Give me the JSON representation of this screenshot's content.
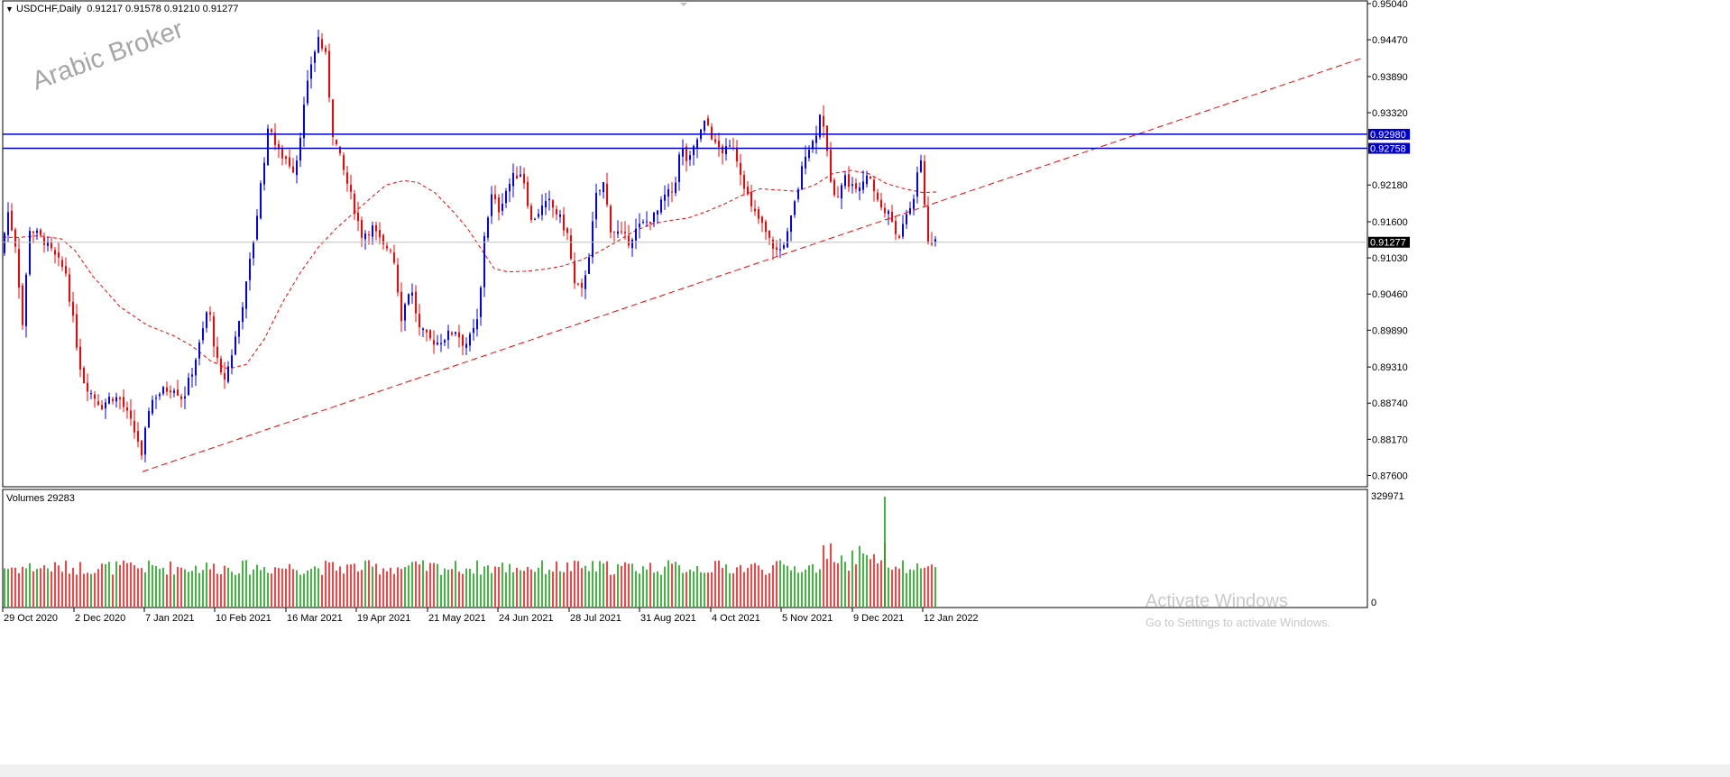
{
  "header": {
    "arrow_glyph": "▼",
    "symbol_info": "USDCHF,Daily  0.91217 0.91578 0.91210 0.91277"
  },
  "watermark": "Arabic Broker",
  "volumes": {
    "label": "Volumes 29283",
    "scale_max": "329971",
    "scale_min": "0"
  },
  "activation": {
    "title": "Activate Windows",
    "subtitle": "Go to Settings to activate Windows."
  },
  "colors": {
    "up_candle": "#0000ff",
    "down_candle": "#ff0000",
    "volume_up": "#00a000",
    "volume_down": "#ff0000",
    "moving_average": "#ff0000",
    "trendline": "#ff0000",
    "resistance_lines": "#0000cc",
    "current_price_label_bg": "#000000"
  },
  "chart_data": {
    "type": "candlestick",
    "symbol": "USDCHF",
    "timeframe": "Daily",
    "ohlc_current": {
      "open": 0.91217,
      "high": 0.91578,
      "low": 0.9121,
      "close": 0.91277
    },
    "y_ticks": [
      "0.95040",
      "0.94470",
      "0.93890",
      "0.93320",
      "0.92180",
      "0.91600",
      "0.91030",
      "0.90460",
      "0.89890",
      "0.89310",
      "0.88740",
      "0.88170",
      "0.87600"
    ],
    "ylim": [
      0.8745,
      0.9504
    ],
    "x_ticks": [
      "29 Oct 2020",
      "2 Dec 2020",
      "7 Jan 2021",
      "10 Feb 2021",
      "16 Mar 2021",
      "19 Apr 2021",
      "21 May 2021",
      "24 Jun 2021",
      "28 Jul 2021",
      "31 Aug 2021",
      "4 Oct 2021",
      "5 Nov 2021",
      "9 Dec 2021",
      "12 Jan 2022"
    ],
    "horizontal_levels": [
      {
        "value": 0.9298,
        "label": "0.92980"
      },
      {
        "value": 0.92758,
        "label": "0.92758"
      }
    ],
    "current_price": {
      "value": 0.91277,
      "label": "0.91277"
    },
    "trendline": {
      "style": "dashed",
      "points": [
        [
          0,
          0.8766
        ],
        [
          1507,
          0.9418
        ]
      ]
    },
    "moving_average": {
      "style": "dashed",
      "points": [
        [
          0,
          0.9136
        ],
        [
          15,
          0.9135
        ],
        [
          40,
          0.9138
        ],
        [
          65,
          0.9133
        ],
        [
          80,
          0.9115
        ],
        [
          100,
          0.9074
        ],
        [
          130,
          0.9026
        ],
        [
          160,
          0.8997
        ],
        [
          190,
          0.898
        ],
        [
          210,
          0.8964
        ],
        [
          230,
          0.8941
        ],
        [
          250,
          0.8928
        ],
        [
          270,
          0.8935
        ],
        [
          290,
          0.8975
        ],
        [
          310,
          0.9032
        ],
        [
          330,
          0.908
        ],
        [
          350,
          0.912
        ],
        [
          370,
          0.915
        ],
        [
          390,
          0.9175
        ],
        [
          410,
          0.92
        ],
        [
          425,
          0.9218
        ],
        [
          445,
          0.9225
        ],
        [
          460,
          0.9222
        ],
        [
          480,
          0.9205
        ],
        [
          500,
          0.9175
        ],
        [
          515,
          0.915
        ],
        [
          530,
          0.9118
        ],
        [
          545,
          0.9086
        ],
        [
          560,
          0.9081
        ],
        [
          580,
          0.9082
        ],
        [
          600,
          0.9085
        ],
        [
          620,
          0.909
        ],
        [
          640,
          0.9099
        ],
        [
          660,
          0.9112
        ],
        [
          680,
          0.9128
        ],
        [
          700,
          0.9145
        ],
        [
          720,
          0.9157
        ],
        [
          740,
          0.9162
        ],
        [
          760,
          0.9166
        ],
        [
          780,
          0.9176
        ],
        [
          800,
          0.9188
        ],
        [
          820,
          0.9202
        ],
        [
          840,
          0.9212
        ],
        [
          860,
          0.921
        ],
        [
          880,
          0.9208
        ],
        [
          900,
          0.9218
        ],
        [
          920,
          0.9236
        ],
        [
          940,
          0.9241
        ],
        [
          960,
          0.9236
        ],
        [
          980,
          0.922
        ],
        [
          1000,
          0.9212
        ],
        [
          1020,
          0.9206
        ],
        [
          1035,
          0.9207
        ]
      ]
    },
    "volume_ylim": [
      0,
      329971
    ]
  }
}
